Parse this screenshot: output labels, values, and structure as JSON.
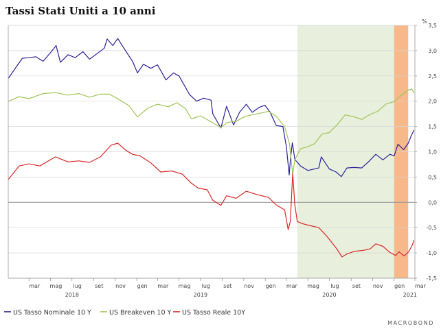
{
  "chart_data": {
    "type": "line",
    "title": "Tassi Stati Uniti a 10 anni",
    "y_unit": "%",
    "ylim": [
      -1.5,
      3.5
    ],
    "yticks": [
      "3,5",
      "3,0",
      "2,5",
      "2,0",
      "1,5",
      "1,0",
      "0,5",
      "0,0",
      "-0,5",
      "-1,0",
      "-1,5"
    ],
    "x_range": [
      "2018-01-01",
      "2021-03-01"
    ],
    "month_labels": [
      "mar",
      "mag",
      "lug",
      "set",
      "nov",
      "gen",
      "mar",
      "mag",
      "lug",
      "set",
      "nov",
      "gen",
      "mar",
      "mag",
      "lug",
      "set",
      "nov",
      "gen",
      "mar"
    ],
    "year_labels": [
      "2018",
      "2019",
      "2020",
      "2021"
    ],
    "shaded_periods": [
      {
        "start": "2020-04-01",
        "end": "2021-01-01",
        "color": "#e8efdc"
      },
      {
        "start": "2021-01-01",
        "end": "2021-02-10",
        "color": "#f7b98a"
      }
    ],
    "series": [
      {
        "name": "US Tasso Nominale 10 Y",
        "color": "#2b1f9a",
        "points": [
          [
            "2018-01-02",
            2.46
          ],
          [
            "2018-01-20",
            2.64
          ],
          [
            "2018-02-10",
            2.85
          ],
          [
            "2018-03-01",
            2.86
          ],
          [
            "2018-03-20",
            2.88
          ],
          [
            "2018-04-10",
            2.79
          ],
          [
            "2018-05-01",
            2.96
          ],
          [
            "2018-05-17",
            3.1
          ],
          [
            "2018-05-29",
            2.77
          ],
          [
            "2018-06-20",
            2.92
          ],
          [
            "2018-07-10",
            2.86
          ],
          [
            "2018-08-01",
            2.98
          ],
          [
            "2018-08-20",
            2.83
          ],
          [
            "2018-09-10",
            2.94
          ],
          [
            "2018-10-01",
            3.05
          ],
          [
            "2018-10-09",
            3.23
          ],
          [
            "2018-10-25",
            3.1
          ],
          [
            "2018-11-08",
            3.24
          ],
          [
            "2018-11-30",
            3.0
          ],
          [
            "2018-12-20",
            2.79
          ],
          [
            "2019-01-03",
            2.56
          ],
          [
            "2019-01-20",
            2.73
          ],
          [
            "2019-02-10",
            2.65
          ],
          [
            "2019-03-01",
            2.72
          ],
          [
            "2019-03-25",
            2.42
          ],
          [
            "2019-04-15",
            2.56
          ],
          [
            "2019-05-01",
            2.5
          ],
          [
            "2019-05-31",
            2.13
          ],
          [
            "2019-06-20",
            2.0
          ],
          [
            "2019-07-10",
            2.06
          ],
          [
            "2019-07-31",
            2.02
          ],
          [
            "2019-08-05",
            1.75
          ],
          [
            "2019-08-28",
            1.47
          ],
          [
            "2019-09-13",
            1.9
          ],
          [
            "2019-10-03",
            1.53
          ],
          [
            "2019-10-20",
            1.78
          ],
          [
            "2019-11-08",
            1.94
          ],
          [
            "2019-11-25",
            1.78
          ],
          [
            "2019-12-15",
            1.88
          ],
          [
            "2019-12-31",
            1.92
          ],
          [
            "2020-01-15",
            1.78
          ],
          [
            "2020-02-01",
            1.52
          ],
          [
            "2020-02-20",
            1.5
          ],
          [
            "2020-03-01",
            1.1
          ],
          [
            "2020-03-09",
            0.54
          ],
          [
            "2020-03-12",
            0.83
          ],
          [
            "2020-03-18",
            1.18
          ],
          [
            "2020-03-25",
            0.85
          ],
          [
            "2020-04-10",
            0.72
          ],
          [
            "2020-05-01",
            0.63
          ],
          [
            "2020-06-01",
            0.68
          ],
          [
            "2020-06-08",
            0.9
          ],
          [
            "2020-07-01",
            0.66
          ],
          [
            "2020-07-20",
            0.6
          ],
          [
            "2020-08-04",
            0.51
          ],
          [
            "2020-08-20",
            0.68
          ],
          [
            "2020-09-10",
            0.69
          ],
          [
            "2020-10-01",
            0.68
          ],
          [
            "2020-10-20",
            0.8
          ],
          [
            "2020-11-10",
            0.95
          ],
          [
            "2020-11-30",
            0.84
          ],
          [
            "2020-12-20",
            0.95
          ],
          [
            "2021-01-01",
            0.92
          ],
          [
            "2021-01-12",
            1.15
          ],
          [
            "2021-01-28",
            1.04
          ],
          [
            "2021-02-10",
            1.17
          ],
          [
            "2021-02-20",
            1.34
          ],
          [
            "2021-02-26",
            1.42
          ]
        ]
      },
      {
        "name": "US Breakeven 10 Y",
        "color": "#9fc454",
        "points": [
          [
            "2018-01-02",
            2.0
          ],
          [
            "2018-02-01",
            2.09
          ],
          [
            "2018-03-01",
            2.05
          ],
          [
            "2018-04-10",
            2.15
          ],
          [
            "2018-05-15",
            2.17
          ],
          [
            "2018-06-20",
            2.12
          ],
          [
            "2018-07-20",
            2.15
          ],
          [
            "2018-08-20",
            2.08
          ],
          [
            "2018-09-20",
            2.14
          ],
          [
            "2018-10-15",
            2.14
          ],
          [
            "2018-11-10",
            2.04
          ],
          [
            "2018-12-10",
            1.91
          ],
          [
            "2019-01-03",
            1.69
          ],
          [
            "2019-02-01",
            1.86
          ],
          [
            "2019-03-01",
            1.94
          ],
          [
            "2019-04-01",
            1.89
          ],
          [
            "2019-04-25",
            1.97
          ],
          [
            "2019-05-20",
            1.85
          ],
          [
            "2019-06-05",
            1.65
          ],
          [
            "2019-07-01",
            1.71
          ],
          [
            "2019-08-01",
            1.59
          ],
          [
            "2019-08-28",
            1.48
          ],
          [
            "2019-09-15",
            1.58
          ],
          [
            "2019-10-10",
            1.6
          ],
          [
            "2019-11-05",
            1.7
          ],
          [
            "2019-12-15",
            1.76
          ],
          [
            "2020-01-10",
            1.8
          ],
          [
            "2020-02-01",
            1.7
          ],
          [
            "2020-02-25",
            1.5
          ],
          [
            "2020-03-10",
            1.15
          ],
          [
            "2020-03-19",
            0.55
          ],
          [
            "2020-03-25",
            0.84
          ],
          [
            "2020-04-10",
            1.06
          ],
          [
            "2020-05-01",
            1.1
          ],
          [
            "2020-05-20",
            1.16
          ],
          [
            "2020-06-10",
            1.35
          ],
          [
            "2020-07-01",
            1.38
          ],
          [
            "2020-07-25",
            1.55
          ],
          [
            "2020-08-15",
            1.73
          ],
          [
            "2020-09-10",
            1.69
          ],
          [
            "2020-10-01",
            1.64
          ],
          [
            "2020-10-25",
            1.74
          ],
          [
            "2020-11-15",
            1.8
          ],
          [
            "2020-12-10",
            1.95
          ],
          [
            "2021-01-01",
            1.99
          ],
          [
            "2021-01-20",
            2.11
          ],
          [
            "2021-02-10",
            2.22
          ],
          [
            "2021-02-20",
            2.24
          ],
          [
            "2021-02-26",
            2.17
          ]
        ]
      },
      {
        "name": "US Tasso Reale 10Y",
        "color": "#d92626",
        "points": [
          [
            "2018-01-02",
            0.46
          ],
          [
            "2018-02-01",
            0.72
          ],
          [
            "2018-03-01",
            0.76
          ],
          [
            "2018-04-01",
            0.72
          ],
          [
            "2018-05-15",
            0.9
          ],
          [
            "2018-06-20",
            0.8
          ],
          [
            "2018-07-20",
            0.82
          ],
          [
            "2018-08-20",
            0.79
          ],
          [
            "2018-09-20",
            0.9
          ],
          [
            "2018-10-20",
            1.13
          ],
          [
            "2018-11-08",
            1.17
          ],
          [
            "2018-12-01",
            1.03
          ],
          [
            "2018-12-20",
            0.95
          ],
          [
            "2019-01-10",
            0.92
          ],
          [
            "2019-02-10",
            0.78
          ],
          [
            "2019-03-10",
            0.6
          ],
          [
            "2019-04-10",
            0.62
          ],
          [
            "2019-05-10",
            0.56
          ],
          [
            "2019-06-05",
            0.38
          ],
          [
            "2019-06-25",
            0.28
          ],
          [
            "2019-07-20",
            0.25
          ],
          [
            "2019-08-05",
            0.04
          ],
          [
            "2019-08-28",
            -0.06
          ],
          [
            "2019-09-13",
            0.13
          ],
          [
            "2019-10-10",
            0.08
          ],
          [
            "2019-11-08",
            0.22
          ],
          [
            "2019-12-10",
            0.15
          ],
          [
            "2020-01-10",
            0.1
          ],
          [
            "2020-02-01",
            -0.05
          ],
          [
            "2020-02-25",
            -0.15
          ],
          [
            "2020-03-06",
            -0.54
          ],
          [
            "2020-03-12",
            -0.38
          ],
          [
            "2020-03-19",
            0.57
          ],
          [
            "2020-03-25",
            -0.05
          ],
          [
            "2020-04-01",
            -0.38
          ],
          [
            "2020-04-15",
            -0.42
          ],
          [
            "2020-05-01",
            -0.45
          ],
          [
            "2020-06-01",
            -0.5
          ],
          [
            "2020-06-25",
            -0.68
          ],
          [
            "2020-07-20",
            -0.9
          ],
          [
            "2020-08-06",
            -1.08
          ],
          [
            "2020-08-20",
            -1.02
          ],
          [
            "2020-09-10",
            -0.97
          ],
          [
            "2020-10-05",
            -0.95
          ],
          [
            "2020-10-25",
            -0.92
          ],
          [
            "2020-11-10",
            -0.82
          ],
          [
            "2020-11-30",
            -0.87
          ],
          [
            "2020-12-20",
            -0.99
          ],
          [
            "2021-01-05",
            -1.05
          ],
          [
            "2021-01-15",
            -0.98
          ],
          [
            "2021-01-30",
            -1.06
          ],
          [
            "2021-02-12",
            -0.97
          ],
          [
            "2021-02-22",
            -0.84
          ],
          [
            "2021-02-26",
            -0.75
          ]
        ]
      }
    ]
  },
  "brand": "MACROBOND"
}
